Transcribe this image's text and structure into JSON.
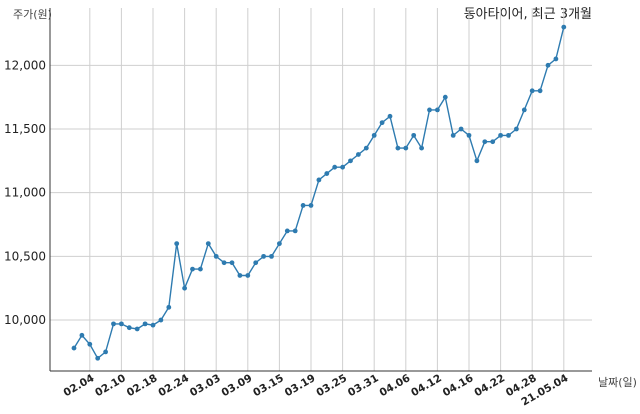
{
  "chart_data": {
    "type": "line",
    "title": "동아타이어, 최근 3개월",
    "ylabel": "주가(원)",
    "xlabel": "날짜(일)",
    "ylim": [
      9600,
      12450
    ],
    "yticks": [
      10000,
      10500,
      11000,
      11500,
      12000
    ],
    "ytick_labels": [
      "10,000",
      "10,500",
      "11,000",
      "11,500",
      "12,000"
    ],
    "xtick_labels": [
      "02.04",
      "02.10",
      "02.18",
      "02.24",
      "03.03",
      "03.09",
      "03.15",
      "03.19",
      "03.25",
      "03.31",
      "04.06",
      "04.12",
      "04.16",
      "04.22",
      "04.28",
      "21.05.04"
    ],
    "grid": true,
    "color": "#2e7bb0",
    "values": [
      9780,
      9880,
      9810,
      9700,
      9750,
      9970,
      9970,
      9940,
      9930,
      9970,
      9960,
      10000,
      10100,
      10600,
      10250,
      10400,
      10400,
      10600,
      10500,
      10450,
      10450,
      10350,
      10350,
      10450,
      10500,
      10500,
      10600,
      10700,
      10700,
      10900,
      10900,
      11100,
      11150,
      11200,
      11200,
      11250,
      11300,
      11350,
      11450,
      11550,
      11600,
      11350,
      11350,
      11450,
      11350,
      11650,
      11650,
      11750,
      11450,
      11500,
      11450,
      11250,
      11400,
      11400,
      11450,
      11450,
      11500,
      11650,
      11800,
      11800,
      12000,
      12050,
      12300
    ]
  }
}
